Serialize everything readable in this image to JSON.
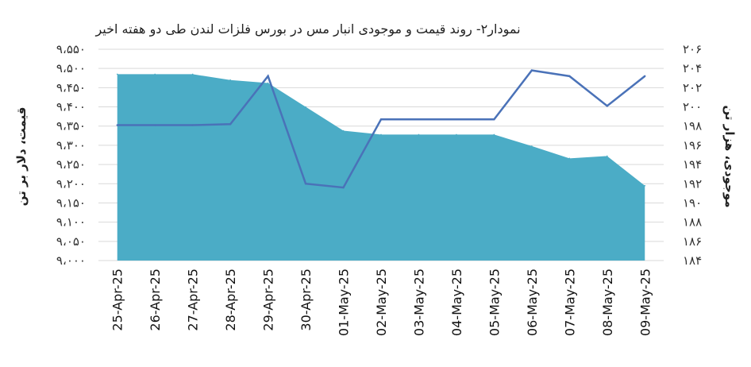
{
  "chart_data": {
    "type": "area",
    "title": "نمودار۲- روند قیمت و موجودی انبار مس در بورس فلزات لندن طی دو هفته اخیر",
    "ylabel_left": "قیمت، دلار بر تن",
    "ylabel_right": "موجودی، هزار تن",
    "grid": true,
    "legend": "none",
    "categories": [
      "25-Apr-25",
      "26-Apr-25",
      "27-Apr-25",
      "28-Apr-25",
      "29-Apr-25",
      "30-Apr-25",
      "01-May-25",
      "02-May-25",
      "03-May-25",
      "04-May-25",
      "05-May-25",
      "06-May-25",
      "07-May-25",
      "08-May-25",
      "09-May-25"
    ],
    "left_axis": {
      "min": 9000,
      "max": 9550,
      "step": 50,
      "tick_labels": [
        "۹،۰۰۰",
        "۹،۰۵۰",
        "۹،۱۰۰",
        "۹،۱۵۰",
        "۹،۲۰۰",
        "۹،۲۵۰",
        "۹،۳۰۰",
        "۹،۳۵۰",
        "۹،۴۰۰",
        "۹،۴۵۰",
        "۹،۵۰۰",
        "۹،۵۵۰"
      ]
    },
    "right_axis": {
      "min": 184,
      "max": 206,
      "step": 2,
      "tick_labels": [
        "۱۸۴",
        "۱۸۶",
        "۱۸۸",
        "۱۹۰",
        "۱۹۲",
        "۱۹۴",
        "۱۹۶",
        "۱۹۸",
        "۲۰۰",
        "۲۰۲",
        "۲۰۴",
        "۲۰۶"
      ]
    },
    "series": [
      {
        "kind": "area",
        "axis": "left",
        "color": "#4bacc6",
        "values": [
          9485,
          9485,
          9485,
          9470,
          9462,
          9400,
          9338,
          9328,
          9328,
          9328,
          9328,
          9298,
          9266,
          9272,
          9195
        ]
      },
      {
        "kind": "line",
        "axis": "right",
        "color": "#4a72b8",
        "values": [
          198.1,
          198.1,
          198.1,
          198.2,
          203.2,
          192.0,
          191.6,
          198.7,
          198.7,
          198.7,
          198.7,
          203.8,
          203.2,
          200.1,
          203.2
        ]
      }
    ]
  }
}
